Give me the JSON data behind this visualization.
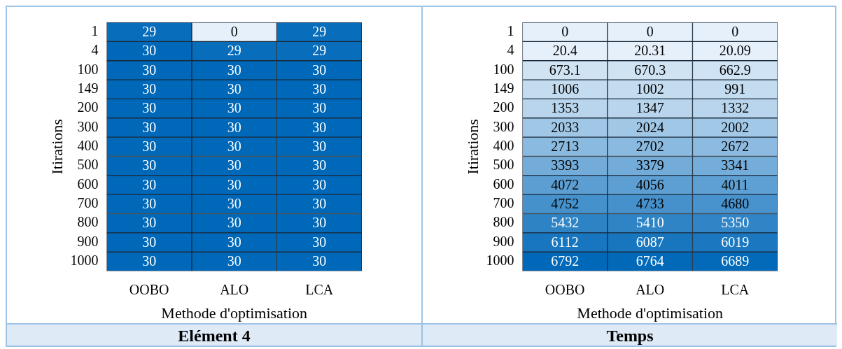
{
  "chart_data": [
    {
      "type": "heatmap",
      "title": "Elément 4",
      "xlabel": "Methode d'optimisation",
      "ylabel": "Itirations",
      "categories": [
        "OOBO",
        "ALO",
        "LCA"
      ],
      "y_categories": [
        "1",
        "4",
        "100",
        "149",
        "200",
        "300",
        "400",
        "500",
        "600",
        "700",
        "800",
        "900",
        "1000"
      ],
      "data_labels": true,
      "cells": [
        [
          29,
          0,
          29
        ],
        [
          30,
          29,
          29
        ],
        [
          30,
          30,
          30
        ],
        [
          30,
          30,
          30
        ],
        [
          30,
          30,
          30
        ],
        [
          30,
          30,
          30
        ],
        [
          30,
          30,
          30
        ],
        [
          30,
          30,
          30
        ],
        [
          30,
          30,
          30
        ],
        [
          30,
          30,
          30
        ],
        [
          30,
          30,
          30
        ],
        [
          30,
          30,
          30
        ],
        [
          30,
          30,
          30
        ]
      ]
    },
    {
      "type": "heatmap",
      "title": "Temps",
      "xlabel": "Methode d'optimisation",
      "ylabel": "Itirations",
      "categories": [
        "OOBO",
        "ALO",
        "LCA"
      ],
      "y_categories": [
        "1",
        "4",
        "100",
        "149",
        "200",
        "300",
        "400",
        "500",
        "600",
        "700",
        "800",
        "900",
        "1000"
      ],
      "data_labels": true,
      "cells": [
        [
          0,
          0,
          0
        ],
        [
          20.4,
          20.31,
          20.09
        ],
        [
          673.1,
          670.3,
          662.9
        ],
        [
          1006,
          1002,
          991
        ],
        [
          1353,
          1347,
          1332
        ],
        [
          2033,
          2024,
          2002
        ],
        [
          2713,
          2702,
          2672
        ],
        [
          3393,
          3379,
          3341
        ],
        [
          4072,
          4056,
          4011
        ],
        [
          4752,
          4733,
          4680
        ],
        [
          5432,
          5410,
          5350
        ],
        [
          6112,
          6087,
          6019
        ],
        [
          6792,
          6764,
          6689
        ]
      ]
    }
  ]
}
